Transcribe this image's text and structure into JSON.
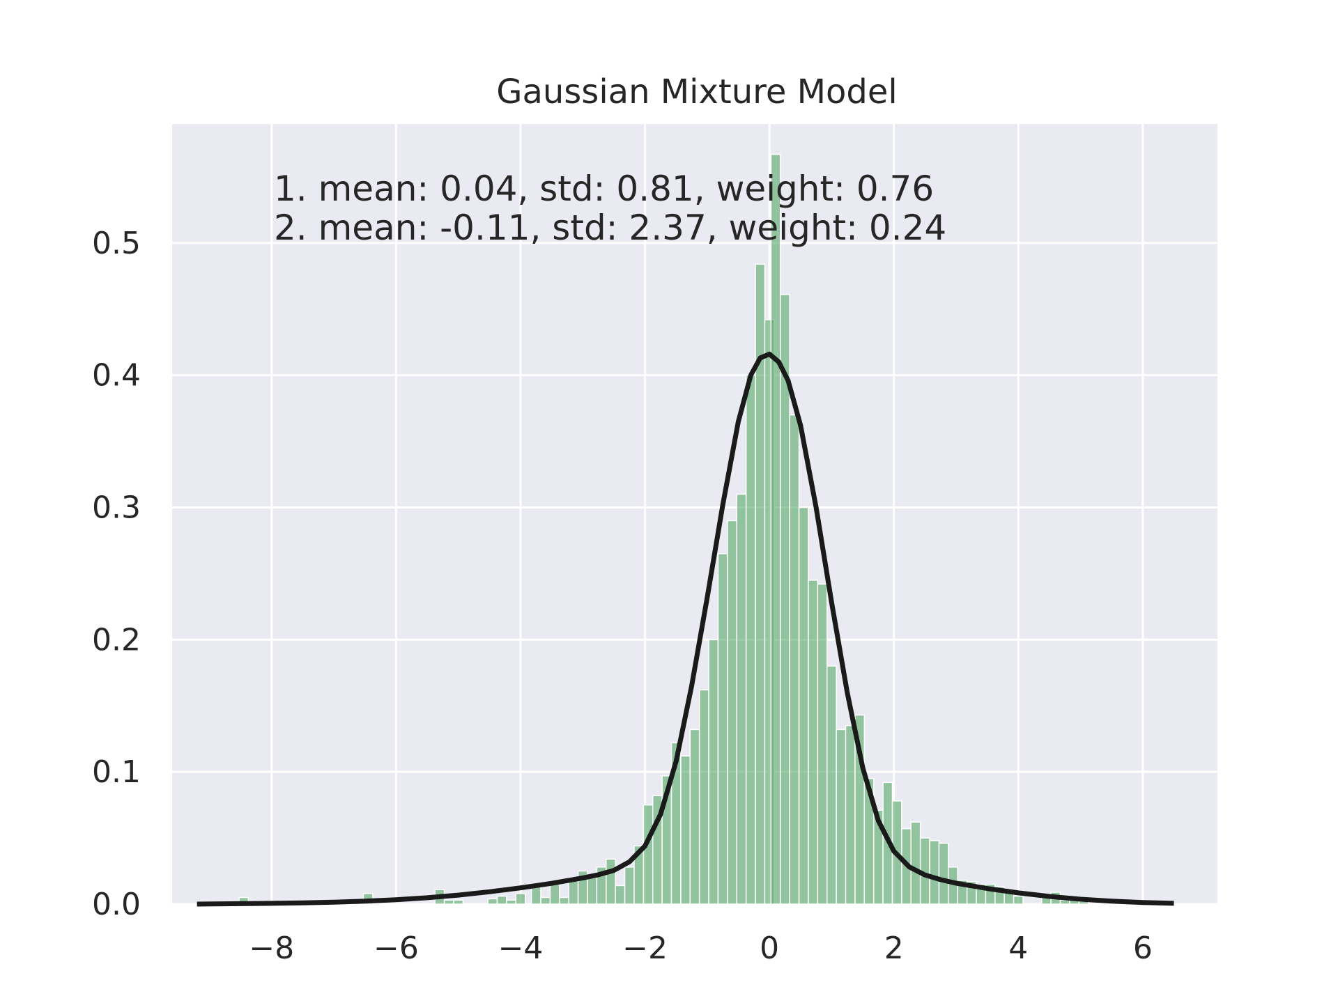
{
  "chart_data": {
    "type": "bar",
    "title": "Gaussian Mixture Model",
    "xlabel": "",
    "ylabel": "",
    "xlim": [
      -9.6,
      7.2
    ],
    "ylim": [
      0,
      0.59
    ],
    "grid": true,
    "legend": "none",
    "x_ticks": [
      -8,
      -6,
      -4,
      -2,
      0,
      2,
      4,
      6
    ],
    "x_tick_labels": [
      "−8",
      "−6",
      "−4",
      "−2",
      "0",
      "2",
      "4",
      "6"
    ],
    "y_ticks": [
      0.0,
      0.1,
      0.2,
      0.3,
      0.4,
      0.5
    ],
    "y_tick_labels": [
      "0.0",
      "0.1",
      "0.2",
      "0.3",
      "0.4",
      "0.5"
    ],
    "annotations": [
      "1. mean: 0.04, std: 0.81, weight: 0.76",
      "2. mean: -0.11, std: 2.37, weight: 0.24"
    ],
    "colors": {
      "histogram": "#55a868",
      "curve": "#1a1a1a",
      "background": "#eaeaf2",
      "grid": "#ffffff"
    },
    "histogram": {
      "bin_width": 0.15,
      "bars": [
        {
          "x": -8.45,
          "y": 0.005
        },
        {
          "x": -6.45,
          "y": 0.008
        },
        {
          "x": -5.3,
          "y": 0.011
        },
        {
          "x": -5.15,
          "y": 0.003
        },
        {
          "x": -5.0,
          "y": 0.003
        },
        {
          "x": -4.45,
          "y": 0.004
        },
        {
          "x": -4.3,
          "y": 0.006
        },
        {
          "x": -4.15,
          "y": 0.003
        },
        {
          "x": -4.0,
          "y": 0.008
        },
        {
          "x": -3.75,
          "y": 0.014
        },
        {
          "x": -3.6,
          "y": 0.005
        },
        {
          "x": -3.45,
          "y": 0.015
        },
        {
          "x": -3.3,
          "y": 0.005
        },
        {
          "x": -3.15,
          "y": 0.02
        },
        {
          "x": -3.0,
          "y": 0.025
        },
        {
          "x": -2.85,
          "y": 0.02
        },
        {
          "x": -2.7,
          "y": 0.028
        },
        {
          "x": -2.55,
          "y": 0.034
        },
        {
          "x": -2.4,
          "y": 0.014
        },
        {
          "x": -2.25,
          "y": 0.028
        },
        {
          "x": -2.1,
          "y": 0.044
        },
        {
          "x": -1.95,
          "y": 0.075
        },
        {
          "x": -1.8,
          "y": 0.082
        },
        {
          "x": -1.65,
          "y": 0.097
        },
        {
          "x": -1.5,
          "y": 0.122
        },
        {
          "x": -1.35,
          "y": 0.112
        },
        {
          "x": -1.2,
          "y": 0.132
        },
        {
          "x": -1.05,
          "y": 0.162
        },
        {
          "x": -0.9,
          "y": 0.2
        },
        {
          "x": -0.75,
          "y": 0.265
        },
        {
          "x": -0.6,
          "y": 0.29
        },
        {
          "x": -0.45,
          "y": 0.31
        },
        {
          "x": -0.3,
          "y": 0.4
        },
        {
          "x": -0.15,
          "y": 0.484
        },
        {
          "x": 0.0,
          "y": 0.442
        },
        {
          "x": 0.1,
          "y": 0.567
        },
        {
          "x": 0.25,
          "y": 0.461
        },
        {
          "x": 0.4,
          "y": 0.37
        },
        {
          "x": 0.55,
          "y": 0.3
        },
        {
          "x": 0.7,
          "y": 0.245
        },
        {
          "x": 0.85,
          "y": 0.242
        },
        {
          "x": 1.0,
          "y": 0.18
        },
        {
          "x": 1.15,
          "y": 0.132
        },
        {
          "x": 1.3,
          "y": 0.135
        },
        {
          "x": 1.45,
          "y": 0.143
        },
        {
          "x": 1.6,
          "y": 0.095
        },
        {
          "x": 1.75,
          "y": 0.071
        },
        {
          "x": 1.9,
          "y": 0.092
        },
        {
          "x": 2.05,
          "y": 0.078
        },
        {
          "x": 2.2,
          "y": 0.057
        },
        {
          "x": 2.35,
          "y": 0.062
        },
        {
          "x": 2.5,
          "y": 0.05
        },
        {
          "x": 2.65,
          "y": 0.048
        },
        {
          "x": 2.8,
          "y": 0.046
        },
        {
          "x": 2.95,
          "y": 0.028
        },
        {
          "x": 3.1,
          "y": 0.018
        },
        {
          "x": 3.25,
          "y": 0.017
        },
        {
          "x": 3.4,
          "y": 0.015
        },
        {
          "x": 3.55,
          "y": 0.015
        },
        {
          "x": 3.7,
          "y": 0.013
        },
        {
          "x": 3.85,
          "y": 0.01
        },
        {
          "x": 4.0,
          "y": 0.006
        },
        {
          "x": 4.45,
          "y": 0.006
        },
        {
          "x": 4.6,
          "y": 0.009
        },
        {
          "x": 4.75,
          "y": 0.003
        },
        {
          "x": 4.9,
          "y": 0.004
        },
        {
          "x": 5.05,
          "y": 0.002
        }
      ]
    },
    "series": [
      {
        "type": "line",
        "x": [
          -9.2,
          -8.5,
          -8.0,
          -7.5,
          -7.0,
          -6.5,
          -6.0,
          -5.5,
          -5.0,
          -4.5,
          -4.0,
          -3.5,
          -3.0,
          -2.75,
          -2.5,
          -2.25,
          -2.0,
          -1.75,
          -1.5,
          -1.25,
          -1.0,
          -0.75,
          -0.5,
          -0.3,
          -0.15,
          0.0,
          0.15,
          0.3,
          0.5,
          0.75,
          1.0,
          1.25,
          1.5,
          1.75,
          2.0,
          2.25,
          2.5,
          2.75,
          3.0,
          3.5,
          4.0,
          4.5,
          5.0,
          5.5,
          6.0,
          6.5
        ],
        "y": [
          0.0,
          0.0003,
          0.0006,
          0.0009,
          0.0014,
          0.0022,
          0.0033,
          0.0048,
          0.0068,
          0.0093,
          0.0123,
          0.0157,
          0.0198,
          0.0222,
          0.0255,
          0.032,
          0.044,
          0.068,
          0.108,
          0.165,
          0.232,
          0.302,
          0.365,
          0.4,
          0.413,
          0.416,
          0.41,
          0.396,
          0.362,
          0.3,
          0.228,
          0.16,
          0.103,
          0.063,
          0.04,
          0.028,
          0.022,
          0.0185,
          0.0158,
          0.0118,
          0.0085,
          0.0058,
          0.0037,
          0.0022,
          0.0012,
          0.0006
        ]
      }
    ]
  }
}
